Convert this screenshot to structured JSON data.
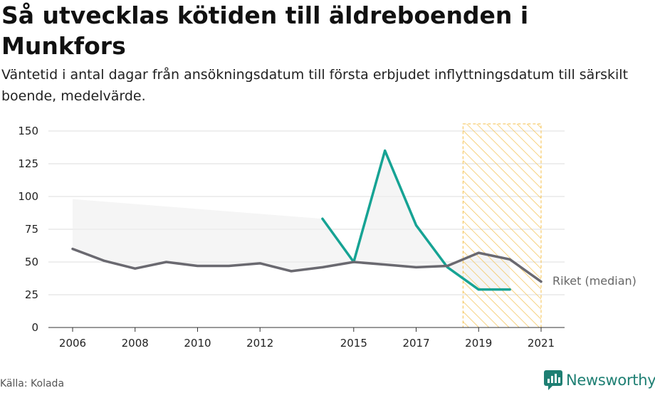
{
  "header": {
    "title": "Så utvecklas kötiden till äldreboenden i Munkfors",
    "subtitle": "Väntetid i antal dagar från ansökningsdatum till första erbjudet inflyttningsdatum till särskilt boende, medelvärde."
  },
  "footer": {
    "source": "Källa: Kolada",
    "brand": "Newsworthy"
  },
  "chart_data": {
    "type": "line",
    "x_ticks": [
      2006,
      2008,
      2010,
      2012,
      2015,
      2017,
      2019,
      2021
    ],
    "y_ticks": [
      0,
      25,
      50,
      75,
      100,
      125,
      150
    ],
    "xlim": [
      2006,
      2021
    ],
    "ylim": [
      0,
      150
    ],
    "highlight_range": [
      2018.5,
      2021
    ],
    "series": [
      {
        "key": "munkfors",
        "color": "#16a394",
        "points": [
          [
            2014,
            83
          ],
          [
            2015,
            50
          ],
          [
            2016,
            135
          ],
          [
            2017,
            78
          ],
          [
            2018,
            46
          ],
          [
            2019,
            29
          ],
          [
            2020,
            29
          ]
        ]
      },
      {
        "key": "riket",
        "name": "Riket (median)",
        "color": "#6a6970",
        "points": [
          [
            2006,
            60
          ],
          [
            2007,
            51
          ],
          [
            2008,
            45
          ],
          [
            2009,
            50
          ],
          [
            2010,
            47
          ],
          [
            2011,
            47
          ],
          [
            2012,
            49
          ],
          [
            2013,
            43
          ],
          [
            2014,
            46
          ],
          [
            2015,
            50
          ],
          [
            2016,
            48
          ],
          [
            2017,
            46
          ],
          [
            2018,
            47
          ],
          [
            2019,
            57
          ],
          [
            2020,
            52
          ],
          [
            2021,
            35
          ]
        ]
      }
    ],
    "band_fill": "#efefef",
    "highlight_color": "#f4c04d",
    "grid": true
  }
}
